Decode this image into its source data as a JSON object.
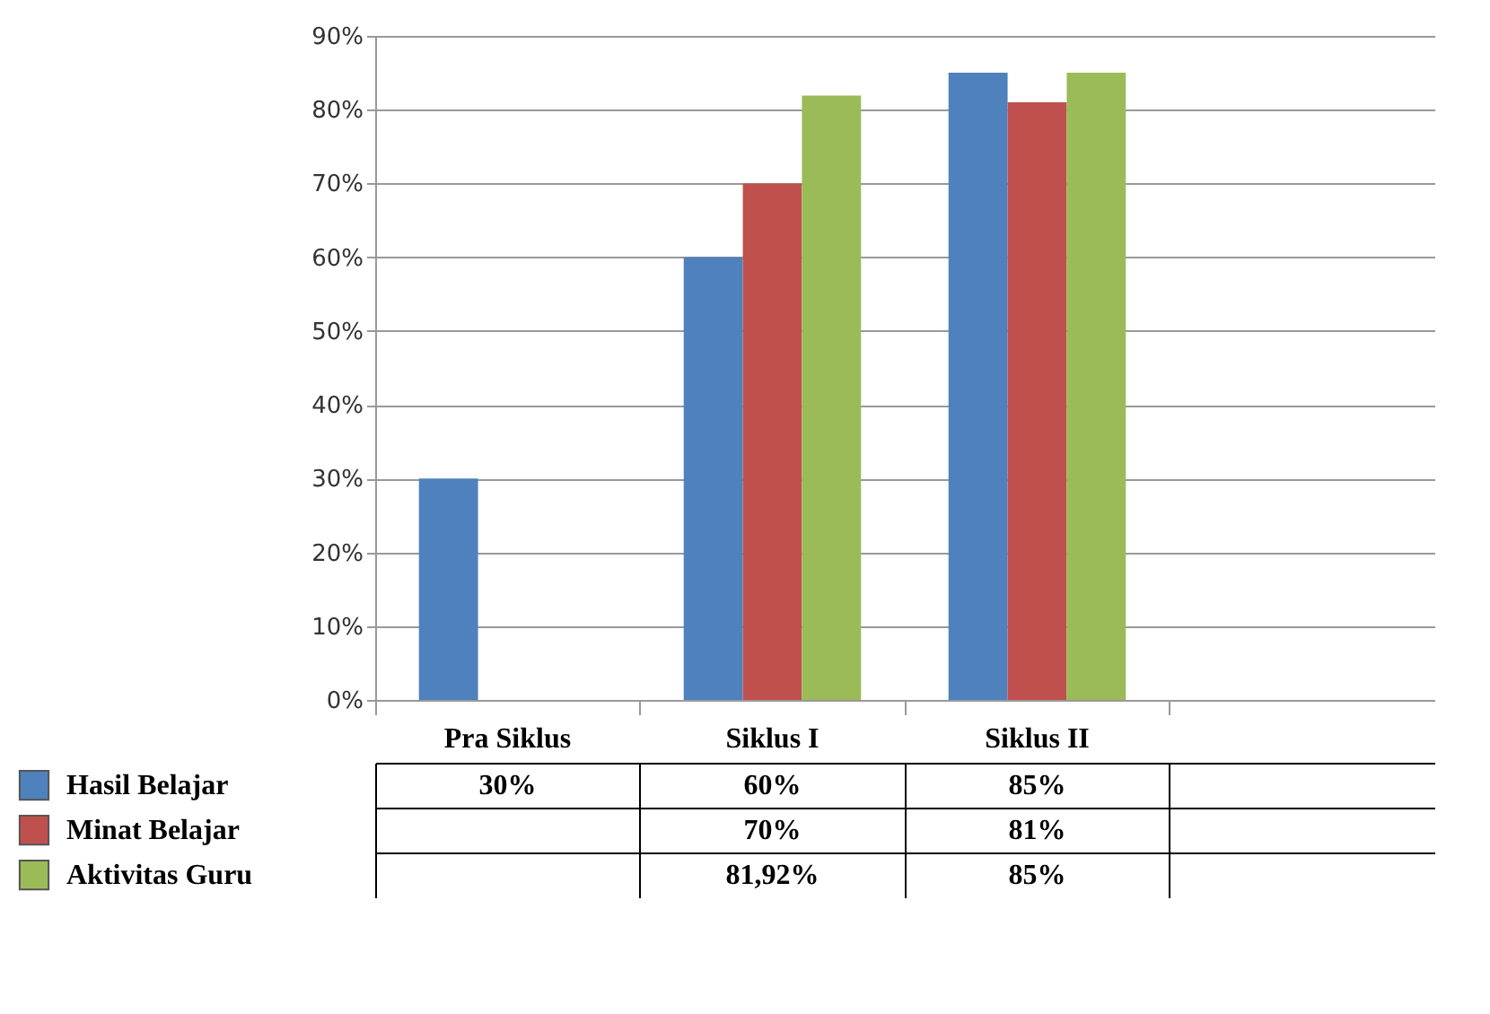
{
  "chart_data": {
    "type": "bar",
    "categories": [
      "Pra Siklus",
      "Siklus I",
      "Siklus II",
      null
    ],
    "series": [
      {
        "name": "Hasil Belajar",
        "color": "#4f81bd",
        "values": [
          30,
          60,
          85,
          null
        ],
        "value_labels": [
          "30%",
          "60%",
          "85%",
          null
        ]
      },
      {
        "name": "Minat Belajar",
        "color": "#c0504d",
        "values": [
          null,
          70,
          81,
          null
        ],
        "value_labels": [
          null,
          "70%",
          "81%",
          null
        ]
      },
      {
        "name": "Aktivitas Guru",
        "color": "#9bbb59",
        "values": [
          null,
          81.92,
          85,
          null
        ],
        "value_labels": [
          null,
          "81,92%",
          "85%",
          null
        ]
      }
    ],
    "ylim": [
      0,
      90
    ],
    "yticks": [
      {
        "value": 0,
        "label": "0%"
      },
      {
        "value": 10,
        "label": "10%"
      },
      {
        "value": 20,
        "label": "20%"
      },
      {
        "value": 30,
        "label": "30%"
      },
      {
        "value": 40,
        "label": "40%"
      },
      {
        "value": 50,
        "label": "50%"
      },
      {
        "value": 60,
        "label": "60%"
      },
      {
        "value": 70,
        "label": "70%"
      },
      {
        "value": 80,
        "label": "80%"
      },
      {
        "value": 90,
        "label": "90%"
      }
    ],
    "grid": "y",
    "legend": "bottom left",
    "tick_labels": "y"
  }
}
